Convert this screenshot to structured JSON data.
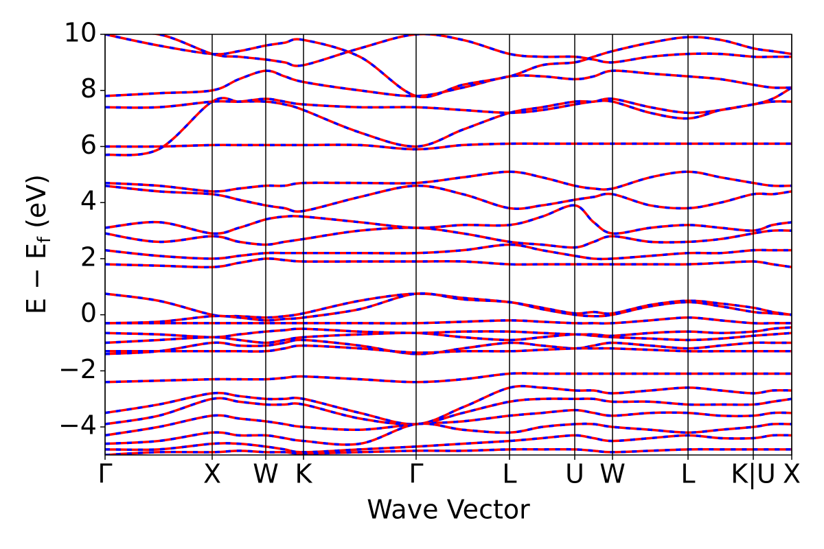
{
  "chart_data": {
    "type": "line",
    "xlabel": "Wave Vector",
    "ylabel": [
      "E − E",
      "f",
      " (eV)"
    ],
    "xlim": [
      0,
      1
    ],
    "ylim": [
      -5,
      10
    ],
    "xticks": [
      {
        "value": 0,
        "label": "Γ"
      },
      {
        "value": 0.156,
        "label": "X"
      },
      {
        "value": 0.234,
        "label": "W"
      },
      {
        "value": 0.289,
        "label": "K"
      },
      {
        "value": 0.453,
        "label": "Γ"
      },
      {
        "value": 0.589,
        "label": "L"
      },
      {
        "value": 0.684,
        "label": "U"
      },
      {
        "value": 0.739,
        "label": "W"
      },
      {
        "value": 0.849,
        "label": "L"
      },
      {
        "value": 0.944,
        "label": "K|U"
      },
      {
        "value": 1.0,
        "label": "X"
      }
    ],
    "yticks": [
      {
        "value": -4,
        "label": "−4"
      },
      {
        "value": -2,
        "label": "−2"
      },
      0,
      2,
      4,
      6,
      8,
      10
    ],
    "overlay_color": "#0000ff",
    "overlay_dashed": true,
    "x": [
      0,
      0.078,
      0.156,
      0.195,
      0.234,
      0.2615,
      0.289,
      0.371,
      0.453,
      0.521,
      0.589,
      0.6365,
      0.684,
      0.7115,
      0.739,
      0.794,
      0.849,
      0.8965,
      0.944,
      0.972,
      1.0
    ],
    "series": [
      {
        "color": "#ff0000",
        "values": [
          0.75,
          0.5,
          0.0,
          -0.05,
          -0.1,
          -0.05,
          0.05,
          0.5,
          0.75,
          0.6,
          0.45,
          0.25,
          0.05,
          0.1,
          0.05,
          0.35,
          0.5,
          0.4,
          0.25,
          0.1,
          0.0
        ]
      },
      {
        "color": "#ff0000",
        "values": [
          -0.3,
          -0.25,
          -0.05,
          -0.1,
          -0.2,
          -0.15,
          -0.1,
          0.2,
          0.75,
          0.55,
          0.45,
          0.2,
          0.0,
          -0.05,
          0.0,
          0.3,
          0.45,
          0.3,
          0.1,
          0.05,
          0.0
        ]
      },
      {
        "color": "#ff0000",
        "values": [
          -0.3,
          -0.3,
          -0.3,
          -0.3,
          -0.3,
          -0.3,
          -0.3,
          -0.3,
          -0.3,
          -0.25,
          -0.2,
          -0.25,
          -0.3,
          -0.3,
          -0.3,
          -0.2,
          -0.1,
          -0.2,
          -0.3,
          -0.3,
          -0.3
        ]
      },
      {
        "color": "#ff0000",
        "values": [
          -0.65,
          -0.7,
          -0.8,
          -0.7,
          -0.6,
          -0.55,
          -0.5,
          -0.6,
          -0.65,
          -0.6,
          -0.6,
          -0.65,
          -0.7,
          -0.7,
          -0.75,
          -0.65,
          -0.6,
          -0.65,
          -0.6,
          -0.5,
          -0.45
        ]
      },
      {
        "color": "#ff0000",
        "values": [
          -1.0,
          -0.9,
          -0.8,
          -0.9,
          -1.0,
          -0.9,
          -0.8,
          -0.7,
          -0.65,
          -0.8,
          -0.9,
          -0.8,
          -0.7,
          -0.75,
          -0.8,
          -0.85,
          -0.9,
          -0.85,
          -0.75,
          -0.7,
          -0.65
        ]
      },
      {
        "color": "#ff0000",
        "values": [
          -1.4,
          -1.3,
          -1.0,
          -1.1,
          -1.1,
          -1.0,
          -0.9,
          -1.1,
          -1.4,
          -1.2,
          -1.0,
          -1.1,
          -1.2,
          -1.1,
          -1.0,
          -1.1,
          -1.2,
          -1.1,
          -1.0,
          -1.0,
          -1.0
        ]
      },
      {
        "color": "#ff0000",
        "values": [
          -1.3,
          -1.3,
          -1.3,
          -1.3,
          -1.3,
          -1.2,
          -1.1,
          -1.2,
          -1.35,
          -1.3,
          -1.3,
          -1.25,
          -1.2,
          -1.2,
          -1.2,
          -1.25,
          -1.3,
          -1.3,
          -1.3,
          -1.3,
          -1.3
        ]
      },
      {
        "color": "#ff0000",
        "values": [
          -2.4,
          -2.35,
          -2.3,
          -2.3,
          -2.3,
          -2.25,
          -2.2,
          -2.3,
          -2.4,
          -2.3,
          -2.1,
          -2.1,
          -2.1,
          -2.1,
          -2.1,
          -2.1,
          -2.1,
          -2.1,
          -2.1,
          -2.1,
          -2.1
        ]
      },
      {
        "color": "#ff0000",
        "values": [
          -3.5,
          -3.2,
          -2.8,
          -2.9,
          -3.0,
          -3.0,
          -3.0,
          -3.5,
          -3.9,
          -3.3,
          -2.6,
          -2.6,
          -2.7,
          -2.7,
          -2.8,
          -2.7,
          -2.6,
          -2.7,
          -2.8,
          -2.7,
          -2.7
        ]
      },
      {
        "color": "#ff0000",
        "values": [
          -3.9,
          -3.6,
          -3.0,
          -3.1,
          -3.2,
          -3.2,
          -3.2,
          -3.7,
          -3.9,
          -3.5,
          -3.1,
          -3.0,
          -3.0,
          -3.0,
          -3.1,
          -3.1,
          -3.2,
          -3.2,
          -3.2,
          -3.1,
          -3.0
        ]
      },
      {
        "color": "#ff0000",
        "values": [
          -4.3,
          -4.0,
          -3.6,
          -3.7,
          -3.8,
          -3.9,
          -4.0,
          -4.1,
          -3.9,
          -3.8,
          -3.6,
          -3.5,
          -3.4,
          -3.5,
          -3.6,
          -3.5,
          -3.5,
          -3.6,
          -3.6,
          -3.5,
          -3.5
        ]
      },
      {
        "color": "#ff0000",
        "values": [
          -4.6,
          -4.5,
          -4.2,
          -4.3,
          -4.3,
          -4.4,
          -4.5,
          -4.6,
          -3.9,
          -4.1,
          -4.2,
          -4.0,
          -3.9,
          -3.9,
          -4.0,
          -4.1,
          -4.2,
          -4.1,
          -4.0,
          -3.9,
          -3.9
        ]
      },
      {
        "color": "#ff0000",
        "values": [
          -4.8,
          -4.8,
          -4.6,
          -4.6,
          -4.7,
          -4.8,
          -4.9,
          -4.8,
          -4.7,
          -4.6,
          -4.5,
          -4.4,
          -4.3,
          -4.4,
          -4.5,
          -4.4,
          -4.3,
          -4.4,
          -4.4,
          -4.3,
          -4.3
        ]
      },
      {
        "color": "#ff0000",
        "values": [
          -5.0,
          -4.9,
          -4.9,
          -4.85,
          -4.9,
          -4.9,
          -4.95,
          -4.9,
          -4.85,
          -4.85,
          -4.8,
          -4.8,
          -4.8,
          -4.85,
          -4.9,
          -4.85,
          -4.8,
          -4.8,
          -4.8,
          -4.8,
          -4.8
        ]
      },
      {
        "color": "#ff0000",
        "values": [
          1.8,
          1.75,
          1.7,
          1.85,
          2.0,
          1.95,
          1.9,
          1.9,
          1.9,
          1.9,
          1.8,
          1.8,
          1.8,
          1.8,
          1.8,
          1.8,
          1.8,
          1.85,
          1.9,
          1.8,
          1.7
        ]
      },
      {
        "color": "#ff0000",
        "values": [
          2.3,
          2.1,
          2.0,
          2.1,
          2.2,
          2.2,
          2.2,
          2.2,
          2.2,
          2.3,
          2.5,
          2.3,
          2.1,
          2.0,
          2.0,
          2.1,
          2.2,
          2.2,
          2.3,
          2.3,
          2.3
        ]
      },
      {
        "color": "#ff0000",
        "values": [
          2.9,
          2.6,
          2.8,
          2.6,
          2.5,
          2.6,
          2.7,
          3.0,
          3.1,
          2.9,
          2.6,
          2.5,
          2.4,
          2.6,
          2.8,
          2.6,
          2.6,
          2.7,
          2.9,
          3.0,
          3.0
        ]
      },
      {
        "color": "#ff0000",
        "values": [
          3.1,
          3.3,
          2.9,
          3.1,
          3.4,
          3.5,
          3.5,
          3.3,
          3.1,
          3.2,
          3.2,
          3.5,
          3.9,
          3.3,
          2.9,
          3.1,
          3.2,
          3.1,
          3.0,
          3.2,
          3.3
        ]
      },
      {
        "color": "#ff0000",
        "values": [
          4.6,
          4.4,
          4.3,
          4.1,
          3.9,
          3.8,
          3.7,
          4.2,
          4.6,
          4.3,
          3.8,
          3.9,
          4.1,
          4.2,
          4.3,
          3.9,
          3.8,
          4.0,
          4.3,
          4.3,
          4.4
        ]
      },
      {
        "color": "#ff0000",
        "values": [
          4.7,
          4.6,
          4.4,
          4.5,
          4.6,
          4.6,
          4.7,
          4.7,
          4.7,
          4.9,
          5.1,
          4.9,
          4.6,
          4.5,
          4.5,
          4.9,
          5.1,
          4.9,
          4.7,
          4.6,
          4.6
        ]
      },
      {
        "color": "#ff0000",
        "values": [
          6.0,
          6.0,
          6.05,
          6.05,
          6.05,
          6.05,
          6.05,
          6.05,
          5.9,
          6.05,
          6.1,
          6.1,
          6.1,
          6.1,
          6.1,
          6.1,
          6.1,
          6.1,
          6.1,
          6.1,
          6.1
        ]
      },
      {
        "color": "#ff0000",
        "values": [
          5.7,
          5.9,
          7.6,
          7.6,
          7.6,
          7.5,
          7.3,
          6.5,
          6.0,
          6.6,
          7.2,
          7.4,
          7.6,
          7.6,
          7.7,
          7.4,
          7.2,
          7.3,
          7.5,
          7.6,
          7.6
        ]
      },
      {
        "color": "#ff0000",
        "values": [
          7.4,
          7.4,
          7.6,
          7.6,
          7.7,
          7.6,
          7.5,
          7.4,
          7.4,
          7.3,
          7.2,
          7.3,
          7.5,
          7.6,
          7.6,
          7.2,
          7.0,
          7.3,
          7.5,
          7.7,
          8.1
        ]
      },
      {
        "color": "#ff0000",
        "values": [
          7.8,
          7.9,
          8.0,
          8.4,
          8.7,
          8.5,
          8.3,
          8.0,
          7.8,
          8.1,
          8.5,
          8.5,
          8.4,
          8.5,
          8.7,
          8.6,
          8.5,
          8.4,
          8.2,
          8.1,
          8.1
        ]
      },
      {
        "color": "#ff0000",
        "values": [
          10.0,
          9.6,
          9.3,
          9.4,
          9.6,
          9.7,
          9.8,
          9.2,
          7.8,
          8.2,
          8.5,
          8.9,
          9.0,
          9.2,
          9.4,
          9.7,
          9.9,
          9.8,
          9.5,
          9.4,
          9.3
        ]
      },
      {
        "color": "#ff0000",
        "values": [
          10.0,
          10.0,
          9.3,
          9.2,
          9.1,
          9.0,
          8.9,
          9.5,
          10.0,
          9.8,
          9.3,
          9.2,
          9.2,
          9.1,
          9.0,
          9.2,
          9.3,
          9.3,
          9.2,
          9.2,
          9.2
        ]
      }
    ]
  }
}
